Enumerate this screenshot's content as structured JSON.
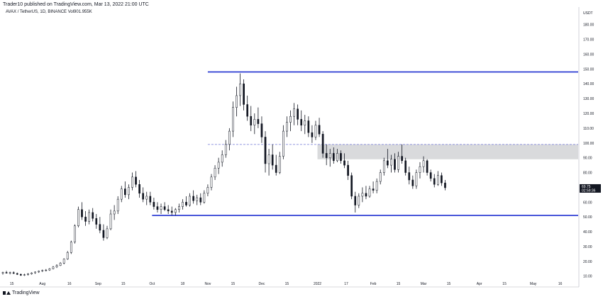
{
  "header": {
    "published": "Trader10 published on TradingView.com, Mar 13, 2022 21:00 UTC",
    "symbol_line": "AVAX / TetherUS, 1D, BINANCE  Vol901.955K"
  },
  "footer": {
    "brand": "TradingView",
    "logo_icon": "tradingview-logo-icon"
  },
  "colors": {
    "candle": "#131722",
    "level_line": "#1e2fd0",
    "dashed_line": "#6f74d6",
    "zone_fill": "#d9dadc",
    "axis_line": "#b2b5be",
    "badge_bg": "#131722"
  },
  "chart_data": {
    "type": "candlestick",
    "currency_label": "USDT",
    "y_axis": {
      "ticks": [
        10,
        20,
        30,
        40,
        50,
        60,
        70,
        80,
        90,
        100,
        110,
        120,
        130,
        140,
        150,
        160,
        170,
        180
      ],
      "tick_labels": [
        "10.00",
        "20.00",
        "30.00",
        "40.00",
        "50.00",
        "60.00",
        "70.00",
        "80.00",
        "90.00",
        "100.00",
        "110.00",
        "120.00",
        "130.00",
        "140.00",
        "150.00",
        "160.00",
        "170.00",
        "180.00"
      ],
      "range": [
        7,
        188
      ]
    },
    "x_axis": {
      "tick_labels": [
        "15",
        "Aug",
        "16",
        "Sep",
        "15",
        "Oct",
        "18",
        "Nov",
        "15",
        "Dec",
        "15",
        "2022",
        "17",
        "Feb",
        "15",
        "Mar",
        "15",
        "Apr",
        "15",
        "May",
        "16"
      ],
      "tick_dates": [
        "2021-07-15",
        "2021-08-01",
        "2021-08-16",
        "2021-09-01",
        "2021-09-15",
        "2021-10-01",
        "2021-10-18",
        "2021-11-01",
        "2021-11-15",
        "2021-12-01",
        "2021-12-15",
        "2022-01-01",
        "2022-01-17",
        "2022-02-01",
        "2022-02-15",
        "2022-03-01",
        "2022-03-15",
        "2022-04-01",
        "2022-04-15",
        "2022-05-01",
        "2022-05-16"
      ],
      "range": [
        "2021-07-10",
        "2022-05-26"
      ]
    },
    "current_price": {
      "value": "69.75",
      "countdown": "02:59:36"
    },
    "horizontal_levels": [
      {
        "kind": "resistance",
        "value": 148,
        "from": "2021-11-01",
        "to": "2022-05-26"
      },
      {
        "kind": "support",
        "value": 51,
        "from": "2021-10-01",
        "to": "2022-05-26"
      },
      {
        "kind": "dashed",
        "value": 99,
        "from": "2021-11-01",
        "to": "2022-05-26"
      }
    ],
    "zones": [
      {
        "from": "2022-01-01",
        "to": "2022-05-26",
        "low": 89,
        "high": 99
      }
    ],
    "candles": [
      {
        "d": "2021-07-10",
        "o": 12.0,
        "h": 13.0,
        "l": 11.0,
        "c": 12.5
      },
      {
        "d": "2021-07-12",
        "o": 12.5,
        "h": 13.6,
        "l": 11.8,
        "c": 12.0
      },
      {
        "d": "2021-07-14",
        "o": 12.0,
        "h": 13.0,
        "l": 11.2,
        "c": 12.4
      },
      {
        "d": "2021-07-16",
        "o": 12.4,
        "h": 13.2,
        "l": 11.5,
        "c": 11.8
      },
      {
        "d": "2021-07-18",
        "o": 11.8,
        "h": 12.4,
        "l": 10.8,
        "c": 11.2
      },
      {
        "d": "2021-07-20",
        "o": 11.2,
        "h": 11.8,
        "l": 10.2,
        "c": 10.6
      },
      {
        "d": "2021-07-22",
        "o": 10.6,
        "h": 11.6,
        "l": 10.2,
        "c": 11.0
      },
      {
        "d": "2021-07-24",
        "o": 11.0,
        "h": 12.0,
        "l": 10.4,
        "c": 11.5
      },
      {
        "d": "2021-07-26",
        "o": 11.5,
        "h": 12.6,
        "l": 11.0,
        "c": 12.2
      },
      {
        "d": "2021-07-28",
        "o": 12.2,
        "h": 13.2,
        "l": 11.6,
        "c": 12.8
      },
      {
        "d": "2021-07-30",
        "o": 12.8,
        "h": 13.8,
        "l": 12.2,
        "c": 13.4
      },
      {
        "d": "2021-08-01",
        "o": 13.4,
        "h": 14.4,
        "l": 12.8,
        "c": 13.9
      },
      {
        "d": "2021-08-03",
        "o": 13.9,
        "h": 14.8,
        "l": 13.2,
        "c": 14.1
      },
      {
        "d": "2021-08-05",
        "o": 14.1,
        "h": 15.5,
        "l": 13.6,
        "c": 15.0
      },
      {
        "d": "2021-08-07",
        "o": 15.0,
        "h": 16.8,
        "l": 14.6,
        "c": 16.2
      },
      {
        "d": "2021-08-09",
        "o": 16.2,
        "h": 18.0,
        "l": 15.5,
        "c": 17.2
      },
      {
        "d": "2021-08-11",
        "o": 17.2,
        "h": 19.5,
        "l": 16.8,
        "c": 18.8
      },
      {
        "d": "2021-08-13",
        "o": 18.8,
        "h": 22.0,
        "l": 18.0,
        "c": 21.5
      },
      {
        "d": "2021-08-15",
        "o": 21.5,
        "h": 27.0,
        "l": 21.0,
        "c": 26.0
      },
      {
        "d": "2021-08-17",
        "o": 26.0,
        "h": 34.0,
        "l": 25.0,
        "c": 33.0
      },
      {
        "d": "2021-08-19",
        "o": 33.0,
        "h": 45.0,
        "l": 32.0,
        "c": 44.0
      },
      {
        "d": "2021-08-21",
        "o": 44.0,
        "h": 57.0,
        "l": 43.0,
        "c": 55.0
      },
      {
        "d": "2021-08-23",
        "o": 55.0,
        "h": 60.0,
        "l": 48.0,
        "c": 50.0
      },
      {
        "d": "2021-08-25",
        "o": 50.0,
        "h": 54.0,
        "l": 44.0,
        "c": 47.0
      },
      {
        "d": "2021-08-27",
        "o": 47.0,
        "h": 55.0,
        "l": 45.0,
        "c": 53.0
      },
      {
        "d": "2021-08-29",
        "o": 53.0,
        "h": 56.0,
        "l": 47.0,
        "c": 49.0
      },
      {
        "d": "2021-08-31",
        "o": 49.0,
        "h": 52.0,
        "l": 42.0,
        "c": 45.0
      },
      {
        "d": "2021-09-02",
        "o": 45.0,
        "h": 50.0,
        "l": 39.0,
        "c": 41.0
      },
      {
        "d": "2021-09-04",
        "o": 41.0,
        "h": 45.0,
        "l": 34.0,
        "c": 36.0
      },
      {
        "d": "2021-09-06",
        "o": 36.0,
        "h": 44.0,
        "l": 35.0,
        "c": 42.0
      },
      {
        "d": "2021-09-08",
        "o": 42.0,
        "h": 55.0,
        "l": 41.0,
        "c": 52.0
      },
      {
        "d": "2021-09-10",
        "o": 52.0,
        "h": 58.0,
        "l": 48.0,
        "c": 54.0
      },
      {
        "d": "2021-09-12",
        "o": 54.0,
        "h": 64.0,
        "l": 52.0,
        "c": 62.0
      },
      {
        "d": "2021-09-14",
        "o": 62.0,
        "h": 71.0,
        "l": 60.0,
        "c": 69.0
      },
      {
        "d": "2021-09-16",
        "o": 69.0,
        "h": 74.0,
        "l": 63.0,
        "c": 65.0
      },
      {
        "d": "2021-09-18",
        "o": 65.0,
        "h": 72.0,
        "l": 62.0,
        "c": 70.0
      },
      {
        "d": "2021-09-20",
        "o": 70.0,
        "h": 80.0,
        "l": 68.0,
        "c": 77.0
      },
      {
        "d": "2021-09-22",
        "o": 77.0,
        "h": 81.0,
        "l": 70.0,
        "c": 72.0
      },
      {
        "d": "2021-09-24",
        "o": 72.0,
        "h": 75.0,
        "l": 63.0,
        "c": 66.0
      },
      {
        "d": "2021-09-26",
        "o": 66.0,
        "h": 70.0,
        "l": 60.0,
        "c": 62.0
      },
      {
        "d": "2021-09-28",
        "o": 62.0,
        "h": 67.0,
        "l": 58.0,
        "c": 64.0
      },
      {
        "d": "2021-09-30",
        "o": 64.0,
        "h": 67.0,
        "l": 58.0,
        "c": 60.0
      },
      {
        "d": "2021-10-02",
        "o": 60.0,
        "h": 63.0,
        "l": 55.0,
        "c": 57.0
      },
      {
        "d": "2021-10-04",
        "o": 57.0,
        "h": 60.0,
        "l": 53.0,
        "c": 55.0
      },
      {
        "d": "2021-10-06",
        "o": 55.0,
        "h": 59.0,
        "l": 52.0,
        "c": 57.0
      },
      {
        "d": "2021-10-08",
        "o": 57.0,
        "h": 60.0,
        "l": 54.0,
        "c": 55.0
      },
      {
        "d": "2021-10-10",
        "o": 55.0,
        "h": 58.0,
        "l": 52.0,
        "c": 54.0
      },
      {
        "d": "2021-10-12",
        "o": 54.0,
        "h": 57.0,
        "l": 51.0,
        "c": 53.0
      },
      {
        "d": "2021-10-14",
        "o": 53.0,
        "h": 56.0,
        "l": 51.0,
        "c": 55.0
      },
      {
        "d": "2021-10-16",
        "o": 55.0,
        "h": 59.0,
        "l": 53.0,
        "c": 57.0
      },
      {
        "d": "2021-10-18",
        "o": 57.0,
        "h": 62.0,
        "l": 55.0,
        "c": 60.0
      },
      {
        "d": "2021-10-20",
        "o": 60.0,
        "h": 64.0,
        "l": 57.0,
        "c": 58.0
      },
      {
        "d": "2021-10-22",
        "o": 58.0,
        "h": 66.0,
        "l": 57.0,
        "c": 64.0
      },
      {
        "d": "2021-10-24",
        "o": 64.0,
        "h": 68.0,
        "l": 59.0,
        "c": 61.0
      },
      {
        "d": "2021-10-26",
        "o": 61.0,
        "h": 65.0,
        "l": 58.0,
        "c": 63.0
      },
      {
        "d": "2021-10-28",
        "o": 63.0,
        "h": 66.0,
        "l": 58.0,
        "c": 60.0
      },
      {
        "d": "2021-10-30",
        "o": 60.0,
        "h": 68.0,
        "l": 59.0,
        "c": 66.0
      },
      {
        "d": "2021-11-01",
        "o": 66.0,
        "h": 72.0,
        "l": 64.0,
        "c": 70.0
      },
      {
        "d": "2021-11-03",
        "o": 70.0,
        "h": 79.0,
        "l": 68.0,
        "c": 77.0
      },
      {
        "d": "2021-11-05",
        "o": 77.0,
        "h": 85.0,
        "l": 75.0,
        "c": 83.0
      },
      {
        "d": "2021-11-07",
        "o": 83.0,
        "h": 90.0,
        "l": 79.0,
        "c": 87.0
      },
      {
        "d": "2021-11-09",
        "o": 87.0,
        "h": 95.0,
        "l": 84.0,
        "c": 92.0
      },
      {
        "d": "2021-11-11",
        "o": 92.0,
        "h": 102.0,
        "l": 90.0,
        "c": 99.0
      },
      {
        "d": "2021-11-13",
        "o": 99.0,
        "h": 110.0,
        "l": 95.0,
        "c": 108.0
      },
      {
        "d": "2021-11-15",
        "o": 108.0,
        "h": 128.0,
        "l": 104.0,
        "c": 124.0
      },
      {
        "d": "2021-11-17",
        "o": 124.0,
        "h": 138.0,
        "l": 118.0,
        "c": 132.0
      },
      {
        "d": "2021-11-19",
        "o": 132.0,
        "h": 147.0,
        "l": 125.0,
        "c": 140.0
      },
      {
        "d": "2021-11-21",
        "o": 140.0,
        "h": 143.0,
        "l": 122.0,
        "c": 126.0
      },
      {
        "d": "2021-11-23",
        "o": 126.0,
        "h": 132.0,
        "l": 115.0,
        "c": 118.0
      },
      {
        "d": "2021-11-25",
        "o": 118.0,
        "h": 125.0,
        "l": 108.0,
        "c": 112.0
      },
      {
        "d": "2021-11-27",
        "o": 112.0,
        "h": 120.0,
        "l": 106.0,
        "c": 116.0
      },
      {
        "d": "2021-11-29",
        "o": 116.0,
        "h": 124.0,
        "l": 110.0,
        "c": 113.0
      },
      {
        "d": "2021-12-01",
        "o": 113.0,
        "h": 118.0,
        "l": 100.0,
        "c": 104.0
      },
      {
        "d": "2021-12-03",
        "o": 104.0,
        "h": 108.0,
        "l": 80.0,
        "c": 86.0
      },
      {
        "d": "2021-12-05",
        "o": 86.0,
        "h": 96.0,
        "l": 78.0,
        "c": 92.0
      },
      {
        "d": "2021-12-07",
        "o": 92.0,
        "h": 99.0,
        "l": 82.0,
        "c": 85.0
      },
      {
        "d": "2021-12-09",
        "o": 85.0,
        "h": 92.0,
        "l": 78.0,
        "c": 80.0
      },
      {
        "d": "2021-12-11",
        "o": 80.0,
        "h": 94.0,
        "l": 79.0,
        "c": 91.0
      },
      {
        "d": "2021-12-13",
        "o": 91.0,
        "h": 112.0,
        "l": 89.0,
        "c": 108.0
      },
      {
        "d": "2021-12-15",
        "o": 108.0,
        "h": 118.0,
        "l": 104.0,
        "c": 114.0
      },
      {
        "d": "2021-12-17",
        "o": 114.0,
        "h": 122.0,
        "l": 108.0,
        "c": 118.0
      },
      {
        "d": "2021-12-19",
        "o": 118.0,
        "h": 127.0,
        "l": 112.0,
        "c": 123.0
      },
      {
        "d": "2021-12-21",
        "o": 123.0,
        "h": 126.0,
        "l": 112.0,
        "c": 116.0
      },
      {
        "d": "2021-12-23",
        "o": 116.0,
        "h": 122.0,
        "l": 108.0,
        "c": 112.0
      },
      {
        "d": "2021-12-25",
        "o": 112.0,
        "h": 119.0,
        "l": 106.0,
        "c": 115.0
      },
      {
        "d": "2021-12-27",
        "o": 115.0,
        "h": 118.0,
        "l": 104.0,
        "c": 107.0
      },
      {
        "d": "2021-12-29",
        "o": 107.0,
        "h": 112.0,
        "l": 100.0,
        "c": 104.0
      },
      {
        "d": "2021-12-31",
        "o": 104.0,
        "h": 115.0,
        "l": 102.0,
        "c": 112.0
      },
      {
        "d": "2022-01-02",
        "o": 112.0,
        "h": 117.0,
        "l": 104.0,
        "c": 106.0
      },
      {
        "d": "2022-01-04",
        "o": 106.0,
        "h": 108.0,
        "l": 90.0,
        "c": 93.0
      },
      {
        "d": "2022-01-06",
        "o": 93.0,
        "h": 99.0,
        "l": 85.0,
        "c": 90.0
      },
      {
        "d": "2022-01-08",
        "o": 90.0,
        "h": 96.0,
        "l": 84.0,
        "c": 93.0
      },
      {
        "d": "2022-01-10",
        "o": 93.0,
        "h": 97.0,
        "l": 86.0,
        "c": 88.0
      },
      {
        "d": "2022-01-12",
        "o": 88.0,
        "h": 96.0,
        "l": 87.0,
        "c": 93.0
      },
      {
        "d": "2022-01-14",
        "o": 93.0,
        "h": 95.0,
        "l": 86.0,
        "c": 88.0
      },
      {
        "d": "2022-01-16",
        "o": 88.0,
        "h": 93.0,
        "l": 83.0,
        "c": 85.0
      },
      {
        "d": "2022-01-18",
        "o": 85.0,
        "h": 88.0,
        "l": 75.0,
        "c": 78.0
      },
      {
        "d": "2022-01-20",
        "o": 78.0,
        "h": 80.0,
        "l": 62.0,
        "c": 64.0
      },
      {
        "d": "2022-01-22",
        "o": 64.0,
        "h": 67.0,
        "l": 53.0,
        "c": 58.0
      },
      {
        "d": "2022-01-24",
        "o": 58.0,
        "h": 66.0,
        "l": 56.0,
        "c": 64.0
      },
      {
        "d": "2022-01-26",
        "o": 64.0,
        "h": 70.0,
        "l": 60.0,
        "c": 66.0
      },
      {
        "d": "2022-01-28",
        "o": 66.0,
        "h": 71.0,
        "l": 62.0,
        "c": 64.0
      },
      {
        "d": "2022-01-30",
        "o": 64.0,
        "h": 71.0,
        "l": 63.0,
        "c": 69.0
      },
      {
        "d": "2022-02-01",
        "o": 69.0,
        "h": 74.0,
        "l": 66.0,
        "c": 68.0
      },
      {
        "d": "2022-02-03",
        "o": 68.0,
        "h": 76.0,
        "l": 66.0,
        "c": 74.0
      },
      {
        "d": "2022-02-05",
        "o": 74.0,
        "h": 82.0,
        "l": 72.0,
        "c": 80.0
      },
      {
        "d": "2022-02-07",
        "o": 80.0,
        "h": 90.0,
        "l": 78.0,
        "c": 88.0
      },
      {
        "d": "2022-02-09",
        "o": 88.0,
        "h": 96.0,
        "l": 83.0,
        "c": 85.0
      },
      {
        "d": "2022-02-11",
        "o": 85.0,
        "h": 92.0,
        "l": 80.0,
        "c": 89.0
      },
      {
        "d": "2022-02-13",
        "o": 89.0,
        "h": 93.0,
        "l": 80.0,
        "c": 82.0
      },
      {
        "d": "2022-02-15",
        "o": 82.0,
        "h": 94.0,
        "l": 80.0,
        "c": 91.0
      },
      {
        "d": "2022-02-17",
        "o": 91.0,
        "h": 99.0,
        "l": 86.0,
        "c": 88.0
      },
      {
        "d": "2022-02-19",
        "o": 88.0,
        "h": 90.0,
        "l": 78.0,
        "c": 80.0
      },
      {
        "d": "2022-02-21",
        "o": 80.0,
        "h": 84.0,
        "l": 72.0,
        "c": 75.0
      },
      {
        "d": "2022-02-23",
        "o": 75.0,
        "h": 78.0,
        "l": 69.0,
        "c": 71.0
      },
      {
        "d": "2022-02-25",
        "o": 71.0,
        "h": 82.0,
        "l": 69.0,
        "c": 80.0
      },
      {
        "d": "2022-02-27",
        "o": 80.0,
        "h": 87.0,
        "l": 76.0,
        "c": 84.0
      },
      {
        "d": "2022-03-01",
        "o": 84.0,
        "h": 91.0,
        "l": 80.0,
        "c": 88.0
      },
      {
        "d": "2022-03-03",
        "o": 88.0,
        "h": 89.0,
        "l": 78.0,
        "c": 80.0
      },
      {
        "d": "2022-03-05",
        "o": 80.0,
        "h": 82.0,
        "l": 74.0,
        "c": 76.0
      },
      {
        "d": "2022-03-07",
        "o": 76.0,
        "h": 79.0,
        "l": 70.0,
        "c": 72.0
      },
      {
        "d": "2022-03-09",
        "o": 72.0,
        "h": 81.0,
        "l": 71.0,
        "c": 78.0
      },
      {
        "d": "2022-03-11",
        "o": 78.0,
        "h": 80.0,
        "l": 71.0,
        "c": 73.0
      },
      {
        "d": "2022-03-13",
        "o": 73.0,
        "h": 75.0,
        "l": 68.0,
        "c": 69.75
      }
    ]
  }
}
